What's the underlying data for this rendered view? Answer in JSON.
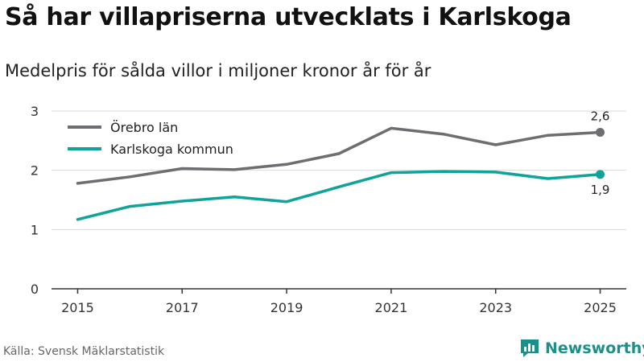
{
  "header": {
    "title": "Så har villapriserna utvecklats i Karlskoga",
    "subtitle": "Medelpris för sålda villor i miljoner kronor år för år"
  },
  "footer": {
    "source": "Källa: Svensk Mäklarstatistik",
    "brand": "Newsworthy",
    "brand_color": "#1b8f8a",
    "brand_icon": "newsworthy-logo-icon"
  },
  "chart_data": {
    "type": "line",
    "title": "Så har villapriserna utvecklats i Karlskoga",
    "subtitle": "Medelpris för sålda villor i miljoner kronor år för år",
    "xlabel": "",
    "ylabel": "",
    "x": [
      2015,
      2016,
      2017,
      2018,
      2019,
      2020,
      2021,
      2022,
      2023,
      2024,
      2025
    ],
    "x_ticks": [
      "2015",
      "2017",
      "2019",
      "2021",
      "2023",
      "2025"
    ],
    "ylim": [
      0,
      3
    ],
    "y_ticks": [
      "0",
      "1",
      "2",
      "3"
    ],
    "grid": true,
    "legend": "top-left",
    "series": [
      {
        "name": "Örebro län",
        "color": "#6e6d72",
        "values": [
          1.78,
          1.89,
          2.03,
          2.01,
          2.1,
          2.28,
          2.71,
          2.61,
          2.43,
          2.59,
          2.64
        ],
        "end_label": "2,6"
      },
      {
        "name": "Karlskoga kommun",
        "color": "#0fa39a",
        "values": [
          1.17,
          1.39,
          1.48,
          1.55,
          1.47,
          1.72,
          1.96,
          1.98,
          1.97,
          1.86,
          1.93
        ],
        "end_label": "1,9"
      }
    ]
  }
}
